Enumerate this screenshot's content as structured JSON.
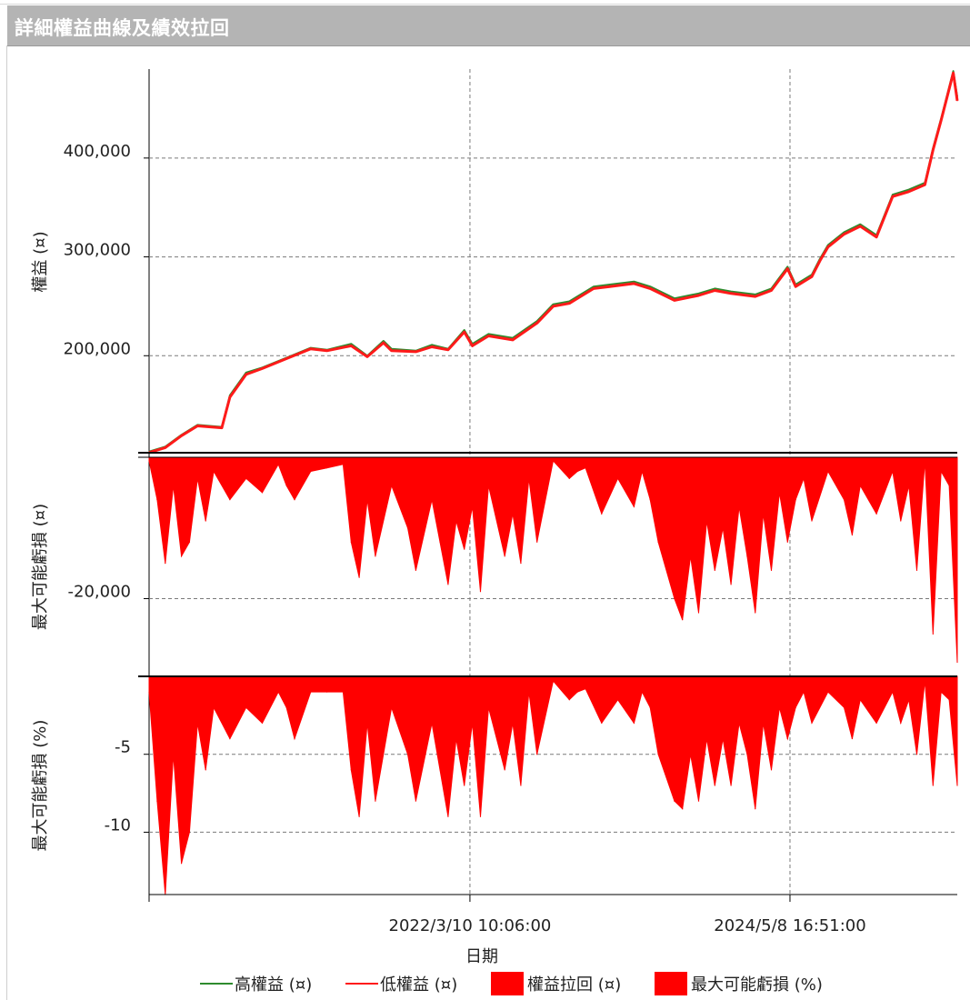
{
  "window": {
    "title": "詳細權益曲線及績效拉回"
  },
  "colors": {
    "high_equity": "#2e8b2e",
    "low_equity": "#ff1a1a",
    "fill_red": "#ff0000",
    "grid": "#7a7a7a"
  },
  "chart_data": [
    {
      "type": "line",
      "panel": "equity",
      "ylabel": "權益 (¤)",
      "ylim": [
        100000,
        490000
      ],
      "yticks": [
        200000,
        300000,
        400000
      ],
      "ytick_labels": [
        "200,000",
        "300,000",
        "400,000"
      ],
      "x_range": [
        0,
        1
      ],
      "series": [
        {
          "name": "高權益 (¤)",
          "x": [
            0.0,
            0.02,
            0.04,
            0.06,
            0.09,
            0.1,
            0.12,
            0.14,
            0.17,
            0.2,
            0.22,
            0.25,
            0.27,
            0.29,
            0.3,
            0.33,
            0.35,
            0.37,
            0.39,
            0.4,
            0.42,
            0.45,
            0.48,
            0.5,
            0.52,
            0.55,
            0.57,
            0.6,
            0.62,
            0.65,
            0.68,
            0.7,
            0.72,
            0.75,
            0.77,
            0.79,
            0.8,
            0.82,
            0.83,
            0.84,
            0.86,
            0.88,
            0.9,
            0.92,
            0.94,
            0.96,
            0.97,
            0.98,
            0.995,
            1.0
          ],
          "y": [
            103000,
            108000,
            120000,
            130000,
            128000,
            160000,
            183000,
            188000,
            198000,
            208000,
            206000,
            212000,
            200000,
            215000,
            207000,
            205000,
            211000,
            207000,
            226000,
            212000,
            222000,
            218000,
            235000,
            252000,
            255000,
            270000,
            272000,
            275000,
            270000,
            258000,
            263000,
            268000,
            265000,
            262000,
            268000,
            290000,
            272000,
            282000,
            298000,
            312000,
            325000,
            333000,
            322000,
            363000,
            368000,
            375000,
            410000,
            440000,
            488000,
            462000
          ]
        },
        {
          "name": "低權益 (¤)",
          "x": [
            0.0,
            0.02,
            0.04,
            0.06,
            0.09,
            0.1,
            0.12,
            0.14,
            0.17,
            0.2,
            0.22,
            0.25,
            0.27,
            0.29,
            0.3,
            0.33,
            0.35,
            0.37,
            0.39,
            0.4,
            0.42,
            0.45,
            0.48,
            0.5,
            0.52,
            0.55,
            0.57,
            0.6,
            0.62,
            0.65,
            0.68,
            0.7,
            0.72,
            0.75,
            0.77,
            0.79,
            0.8,
            0.82,
            0.83,
            0.84,
            0.86,
            0.88,
            0.9,
            0.92,
            0.94,
            0.96,
            0.97,
            0.98,
            0.995,
            1.0
          ],
          "y": [
            102000,
            107000,
            119000,
            129000,
            127000,
            158000,
            181000,
            187000,
            197000,
            207000,
            205000,
            210000,
            199000,
            213000,
            205000,
            204000,
            209000,
            206000,
            224000,
            210000,
            220000,
            216000,
            233000,
            250000,
            253000,
            268000,
            270000,
            273000,
            268000,
            256000,
            261000,
            266000,
            263000,
            260000,
            266000,
            288000,
            270000,
            280000,
            296000,
            310000,
            323000,
            331000,
            320000,
            361000,
            366000,
            373000,
            408000,
            438000,
            486000,
            458000
          ]
        }
      ]
    },
    {
      "type": "area",
      "panel": "drawdown",
      "ylabel": "最大可能虧損 (¤)",
      "ylim": [
        -31000,
        0
      ],
      "yticks": [
        -20000
      ],
      "ytick_labels": [
        "-20,000"
      ],
      "series": [
        {
          "name": "權益拉回 (¤)",
          "x": [
            0.0,
            0.01,
            0.02,
            0.03,
            0.04,
            0.05,
            0.06,
            0.07,
            0.08,
            0.1,
            0.12,
            0.14,
            0.16,
            0.17,
            0.18,
            0.2,
            0.22,
            0.24,
            0.25,
            0.26,
            0.27,
            0.28,
            0.3,
            0.32,
            0.33,
            0.35,
            0.36,
            0.37,
            0.38,
            0.39,
            0.4,
            0.41,
            0.42,
            0.44,
            0.45,
            0.46,
            0.47,
            0.48,
            0.5,
            0.52,
            0.53,
            0.54,
            0.56,
            0.58,
            0.6,
            0.61,
            0.62,
            0.63,
            0.65,
            0.66,
            0.67,
            0.68,
            0.69,
            0.7,
            0.71,
            0.72,
            0.73,
            0.74,
            0.75,
            0.76,
            0.77,
            0.78,
            0.79,
            0.8,
            0.81,
            0.82,
            0.84,
            0.86,
            0.87,
            0.88,
            0.9,
            0.92,
            0.93,
            0.94,
            0.95,
            0.96,
            0.97,
            0.98,
            0.99,
            1.0
          ],
          "y": [
            -500,
            -6000,
            -15000,
            -4000,
            -14000,
            -12000,
            -3000,
            -9000,
            -2000,
            -6000,
            -3000,
            -5000,
            -1000,
            -4000,
            -6000,
            -2000,
            -1500,
            -1000,
            -12000,
            -17000,
            -6000,
            -14000,
            -4000,
            -10000,
            -16000,
            -6000,
            -12000,
            -18000,
            -9000,
            -13000,
            -7000,
            -19000,
            -4000,
            -14000,
            -8000,
            -15000,
            -3000,
            -12000,
            -500,
            -3000,
            -2000,
            -1500,
            -8000,
            -3000,
            -7000,
            -2000,
            -6000,
            -12000,
            -20000,
            -23000,
            -14000,
            -22000,
            -9000,
            -16000,
            -10000,
            -18000,
            -7000,
            -14000,
            -22000,
            -8000,
            -16000,
            -5000,
            -12000,
            -6000,
            -3000,
            -9000,
            -2000,
            -6000,
            -11000,
            -4000,
            -8000,
            -2000,
            -9000,
            -4000,
            -16000,
            -500,
            -25000,
            -2000,
            -4000,
            -29000
          ]
        }
      ]
    },
    {
      "type": "area",
      "panel": "drawdown_pct",
      "ylabel": "最大可能虧損 (%)",
      "ylim": [
        -14,
        0
      ],
      "yticks": [
        -5,
        -10
      ],
      "ytick_labels": [
        "-5",
        "-10"
      ],
      "series": [
        {
          "name": "最大可能虧損 (%)",
          "x": [
            0.0,
            0.01,
            0.02,
            0.03,
            0.04,
            0.05,
            0.06,
            0.07,
            0.08,
            0.1,
            0.12,
            0.14,
            0.16,
            0.17,
            0.18,
            0.2,
            0.22,
            0.24,
            0.25,
            0.26,
            0.27,
            0.28,
            0.3,
            0.32,
            0.33,
            0.35,
            0.36,
            0.37,
            0.38,
            0.39,
            0.4,
            0.41,
            0.42,
            0.44,
            0.45,
            0.46,
            0.47,
            0.48,
            0.5,
            0.52,
            0.53,
            0.54,
            0.56,
            0.58,
            0.6,
            0.61,
            0.62,
            0.63,
            0.65,
            0.66,
            0.67,
            0.68,
            0.69,
            0.7,
            0.71,
            0.72,
            0.73,
            0.74,
            0.75,
            0.76,
            0.77,
            0.78,
            0.79,
            0.8,
            0.81,
            0.82,
            0.84,
            0.86,
            0.87,
            0.88,
            0.9,
            0.92,
            0.93,
            0.94,
            0.95,
            0.96,
            0.97,
            0.98,
            0.99,
            1.0
          ],
          "y": [
            -1,
            -8,
            -14,
            -5,
            -12,
            -10,
            -3,
            -6,
            -2,
            -4,
            -2,
            -3,
            -1,
            -2,
            -4,
            -1,
            -1,
            -1,
            -6,
            -9,
            -3,
            -8,
            -2,
            -5,
            -8,
            -3,
            -6,
            -9,
            -4,
            -7,
            -3,
            -9,
            -2,
            -6,
            -3,
            -7,
            -1,
            -5,
            -0.3,
            -1.5,
            -1,
            -0.8,
            -3,
            -1.5,
            -3,
            -1,
            -2,
            -5,
            -8,
            -8.5,
            -5,
            -8,
            -4,
            -7,
            -4,
            -7,
            -3,
            -5,
            -8.5,
            -3,
            -6,
            -2,
            -4,
            -2,
            -1,
            -3,
            -1,
            -2,
            -4,
            -1.5,
            -3,
            -1,
            -3,
            -1.5,
            -5,
            -0.3,
            -7,
            -1,
            -1.5,
            -7
          ]
        }
      ]
    }
  ],
  "x_axis": {
    "xlabel": "日期",
    "ticks": [
      0.0,
      0.397,
      0.793
    ],
    "tick_labels": [
      "",
      "2022/3/10 10:06:00",
      "2024/5/8 16:51:00"
    ]
  },
  "legend": [
    {
      "label": "高權益 (¤)",
      "kind": "line",
      "color": "#2e8b2e"
    },
    {
      "label": "低權益 (¤)",
      "kind": "line",
      "color": "#ff1a1a"
    },
    {
      "label": "權益拉回 (¤)",
      "kind": "box",
      "color": "#ff0000"
    },
    {
      "label": "最大可能虧損 (%)",
      "kind": "box",
      "color": "#ff0000"
    }
  ]
}
